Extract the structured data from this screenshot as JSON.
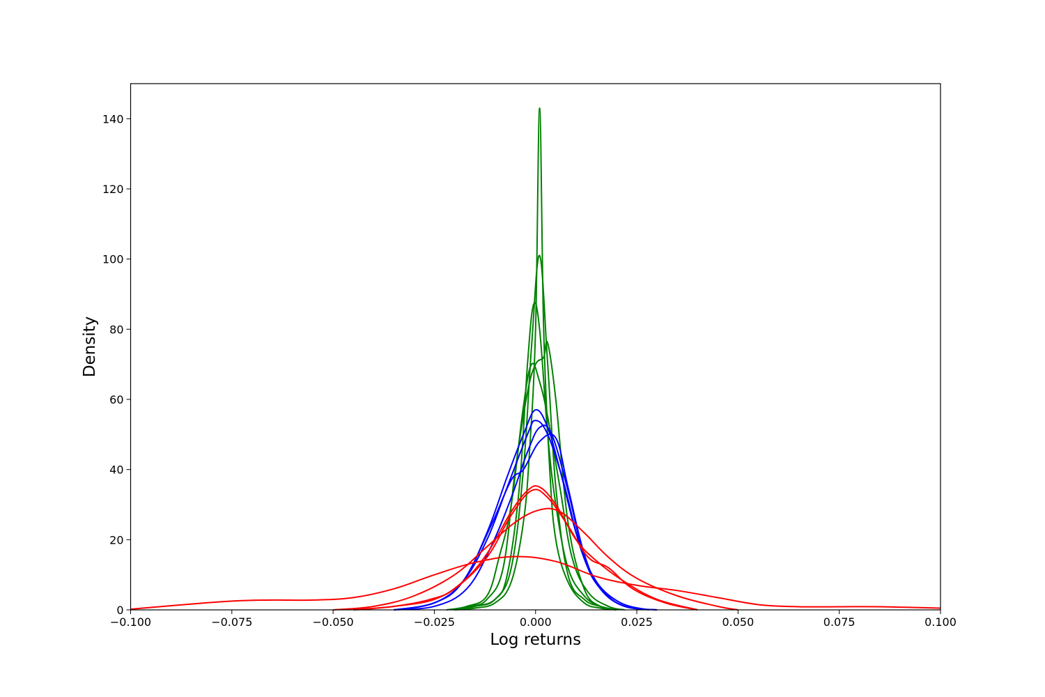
{
  "chart_data": {
    "type": "line",
    "xlabel": "Log returns",
    "ylabel": "Density",
    "xlim": [
      -0.1,
      0.1
    ],
    "ylim": [
      0,
      150
    ],
    "x_ticks": [
      -0.1,
      -0.075,
      -0.05,
      -0.025,
      0.0,
      0.025,
      0.05,
      0.075,
      0.1
    ],
    "x_tick_labels": [
      "−0.100",
      "−0.075",
      "−0.050",
      "−0.025",
      "0.000",
      "0.025",
      "0.050",
      "0.075",
      "0.100"
    ],
    "y_ticks": [
      0,
      20,
      40,
      60,
      80,
      100,
      120,
      140
    ],
    "y_tick_labels": [
      "0",
      "20",
      "40",
      "60",
      "80",
      "100",
      "120",
      "140"
    ],
    "grid": false,
    "legend": "none",
    "series": [
      {
        "color": "#008000",
        "x": [
          -0.02,
          -0.015,
          -0.01,
          -0.006,
          -0.003,
          -0.0015,
          0,
          0.001,
          0.002,
          0.0035,
          0.005,
          0.008,
          0.012,
          0.016,
          0.02
        ],
        "y": [
          0,
          0.5,
          2,
          8,
          25,
          45,
          80,
          143,
          80,
          40,
          20,
          8,
          2,
          0.5,
          0
        ]
      },
      {
        "color": "#008000",
        "x": [
          -0.02,
          -0.015,
          -0.01,
          -0.006,
          -0.003,
          -0.001,
          0.001,
          0.003,
          0.005,
          0.008,
          0.012,
          0.016,
          0.02
        ],
        "y": [
          0,
          1,
          3,
          12,
          40,
          75,
          101,
          70,
          35,
          10,
          3,
          1,
          0
        ]
      },
      {
        "color": "#008000",
        "x": [
          -0.02,
          -0.015,
          -0.01,
          -0.007,
          -0.004,
          -0.002,
          -0.0005,
          0.001,
          0.003,
          0.005,
          0.008,
          0.012,
          0.016,
          0.02
        ],
        "y": [
          0,
          1,
          3,
          10,
          35,
          70,
          87,
          80,
          50,
          30,
          12,
          4,
          1,
          0
        ]
      },
      {
        "color": "#008000",
        "x": [
          -0.02,
          -0.016,
          -0.012,
          -0.008,
          -0.005,
          -0.002,
          0,
          0.002,
          0.003,
          0.005,
          0.008,
          0.012,
          0.016,
          0.02
        ],
        "y": [
          0,
          1,
          3,
          12,
          40,
          62,
          70,
          72,
          76,
          60,
          25,
          6,
          1,
          0
        ]
      },
      {
        "color": "#008000",
        "x": [
          -0.022,
          -0.017,
          -0.012,
          -0.009,
          -0.006,
          -0.003,
          -0.001,
          0.001,
          0.003,
          0.006,
          0.009,
          0.013,
          0.018,
          0.022
        ],
        "y": [
          0,
          1,
          4,
          15,
          30,
          58,
          70,
          65,
          55,
          35,
          15,
          5,
          1,
          0
        ]
      },
      {
        "color": "#0000ff",
        "x": [
          -0.035,
          -0.025,
          -0.018,
          -0.012,
          -0.007,
          -0.003,
          0,
          0.003,
          0.006,
          0.01,
          0.014,
          0.02,
          0.028
        ],
        "y": [
          0,
          2,
          8,
          22,
          38,
          50,
          57,
          52,
          40,
          22,
          10,
          2,
          0
        ]
      },
      {
        "color": "#0000ff",
        "x": [
          -0.035,
          -0.025,
          -0.018,
          -0.012,
          -0.007,
          -0.002,
          0,
          0.003,
          0.007,
          0.011,
          0.015,
          0.021,
          0.028
        ],
        "y": [
          0,
          2,
          8,
          20,
          35,
          50,
          54,
          50,
          36,
          18,
          8,
          2,
          0
        ]
      },
      {
        "color": "#0000ff",
        "x": [
          -0.035,
          -0.025,
          -0.018,
          -0.011,
          -0.006,
          -0.003,
          0.001,
          0.005,
          0.008,
          0.012,
          0.016,
          0.022,
          0.03
        ],
        "y": [
          0,
          2,
          8,
          24,
          37,
          40,
          48,
          49,
          35,
          16,
          6,
          1,
          0
        ]
      },
      {
        "color": "#0000ff",
        "x": [
          -0.035,
          -0.025,
          -0.017,
          -0.011,
          -0.006,
          -0.002,
          0.001,
          0.004,
          0.008,
          0.012,
          0.016,
          0.022,
          0.03
        ],
        "y": [
          0,
          1,
          6,
          18,
          32,
          45,
          52,
          50,
          34,
          15,
          6,
          1,
          0
        ]
      },
      {
        "color": "#ff0000",
        "x": [
          -0.045,
          -0.035,
          -0.025,
          -0.018,
          -0.012,
          -0.006,
          -0.002,
          0.001,
          0.005,
          0.01,
          0.015,
          0.022,
          0.03,
          0.04
        ],
        "y": [
          0,
          1,
          3,
          8,
          16,
          28,
          34,
          35,
          30,
          20,
          14,
          8,
          3,
          0
        ]
      },
      {
        "color": "#ff0000",
        "x": [
          -0.045,
          -0.035,
          -0.026,
          -0.02,
          -0.012,
          -0.006,
          -0.001,
          0.003,
          0.008,
          0.013,
          0.018,
          0.024,
          0.032,
          0.04
        ],
        "y": [
          0,
          1,
          3,
          6,
          15,
          27,
          34,
          32,
          24,
          15,
          12,
          6,
          2,
          0
        ]
      },
      {
        "color": "#ff0000",
        "x": [
          -0.05,
          -0.04,
          -0.03,
          -0.02,
          -0.012,
          -0.005,
          0.001,
          0.006,
          0.012,
          0.018,
          0.025,
          0.035,
          0.045,
          0.05
        ],
        "y": [
          0,
          1,
          4,
          10,
          18,
          25,
          28.5,
          28,
          22,
          15,
          9,
          4,
          1,
          0
        ]
      },
      {
        "color": "#ff0000",
        "x": [
          -0.1,
          -0.09,
          -0.075,
          -0.065,
          -0.055,
          -0.045,
          -0.035,
          -0.025,
          -0.015,
          -0.005,
          0.005,
          0.015,
          0.025,
          0.035,
          0.045,
          0.055,
          0.065,
          0.075,
          0.085,
          0.1
        ],
        "y": [
          0.2,
          1.2,
          2.5,
          2.8,
          2.8,
          3.5,
          6,
          10,
          13.5,
          15.2,
          13.8,
          9.5,
          7,
          5.5,
          3.5,
          1.5,
          0.9,
          0.9,
          0.9,
          0.5
        ]
      }
    ]
  }
}
